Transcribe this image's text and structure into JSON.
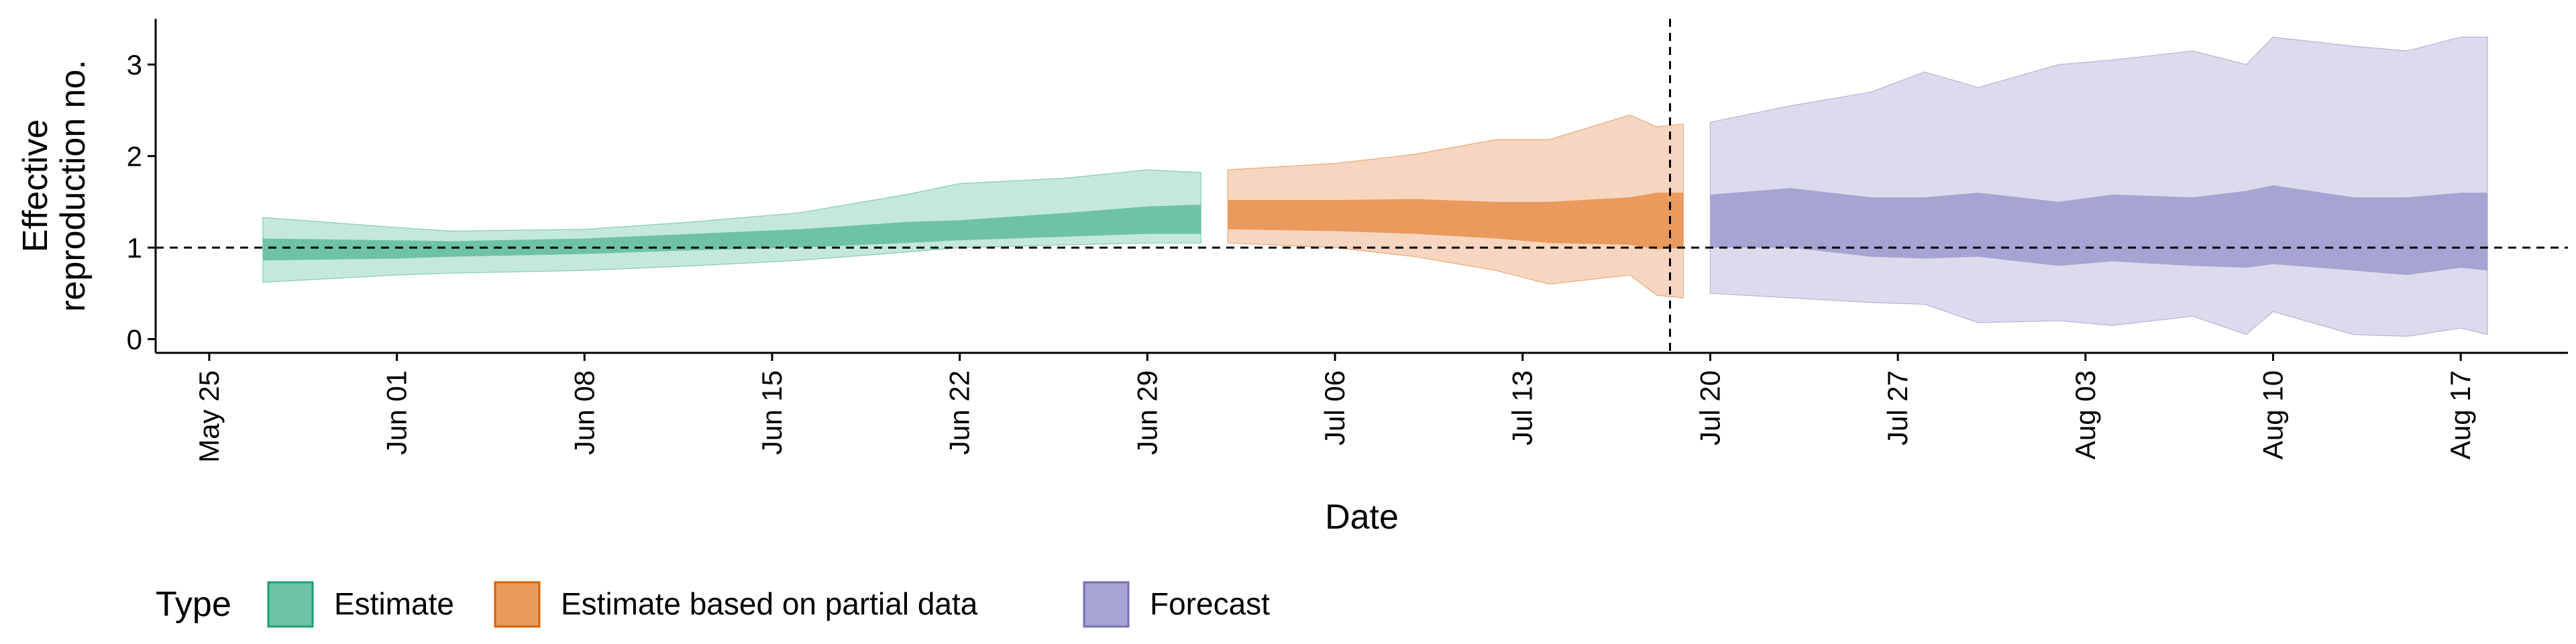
{
  "chart_data": {
    "type": "area",
    "xlabel": "Date",
    "ylabel": [
      "Effective",
      "reproduction no."
    ],
    "x_ticks": [
      "May 25",
      "Jun 01",
      "Jun 08",
      "Jun 15",
      "Jun 22",
      "Jun 29",
      "Jul 06",
      "Jul 13",
      "Jul 20",
      "Jul 27",
      "Aug 03",
      "Aug 10",
      "Aug 17"
    ],
    "y_ticks": [
      0,
      1,
      2,
      3
    ],
    "xlim": [
      "2020-05-23",
      "2020-08-21"
    ],
    "ylim": [
      -0.15,
      3.5
    ],
    "reference_line_y": 1,
    "forecast_start": "2020-07-19",
    "legend_position": "bottom-left",
    "legend_title": "Type",
    "series": [
      {
        "name": "Estimate",
        "color": "#1b9e77",
        "fill_outer": "#c5e8dc",
        "fill_inner": "#6fc2a8",
        "points": [
          {
            "date": "2020-05-27",
            "lo90": 0.62,
            "lo50": 0.86,
            "hi50": 1.1,
            "hi90": 1.33
          },
          {
            "date": "2020-06-01",
            "lo90": 0.7,
            "lo50": 0.88,
            "hi50": 1.08,
            "hi90": 1.22
          },
          {
            "date": "2020-06-03",
            "lo90": 0.72,
            "lo50": 0.9,
            "hi50": 1.07,
            "hi90": 1.18
          },
          {
            "date": "2020-06-08",
            "lo90": 0.75,
            "lo50": 0.93,
            "hi50": 1.1,
            "hi90": 1.2
          },
          {
            "date": "2020-06-12",
            "lo90": 0.8,
            "lo50": 0.97,
            "hi50": 1.15,
            "hi90": 1.28
          },
          {
            "date": "2020-06-16",
            "lo90": 0.86,
            "lo50": 1.0,
            "hi50": 1.2,
            "hi90": 1.38
          },
          {
            "date": "2020-06-20",
            "lo90": 0.95,
            "lo50": 1.05,
            "hi50": 1.28,
            "hi90": 1.58
          },
          {
            "date": "2020-06-22",
            "lo90": 1.0,
            "lo50": 1.08,
            "hi50": 1.3,
            "hi90": 1.7
          },
          {
            "date": "2020-06-26",
            "lo90": 1.03,
            "lo50": 1.12,
            "hi50": 1.38,
            "hi90": 1.76
          },
          {
            "date": "2020-06-29",
            "lo90": 1.05,
            "lo50": 1.15,
            "hi50": 1.45,
            "hi90": 1.85
          },
          {
            "date": "2020-07-01",
            "lo90": 1.05,
            "lo50": 1.15,
            "hi50": 1.47,
            "hi90": 1.82
          }
        ]
      },
      {
        "name": "Estimate based on partial data",
        "color": "#d95f02",
        "fill_outer": "#f6d6c0",
        "fill_inner": "#e99a5c",
        "points": [
          {
            "date": "2020-07-02",
            "lo90": 1.05,
            "lo50": 1.2,
            "hi50": 1.52,
            "hi90": 1.85
          },
          {
            "date": "2020-07-06",
            "lo90": 1.0,
            "lo50": 1.18,
            "hi50": 1.52,
            "hi90": 1.92
          },
          {
            "date": "2020-07-09",
            "lo90": 0.9,
            "lo50": 1.15,
            "hi50": 1.53,
            "hi90": 2.02
          },
          {
            "date": "2020-07-12",
            "lo90": 0.75,
            "lo50": 1.1,
            "hi50": 1.5,
            "hi90": 2.18
          },
          {
            "date": "2020-07-14",
            "lo90": 0.6,
            "lo50": 1.05,
            "hi50": 1.5,
            "hi90": 2.18
          },
          {
            "date": "2020-07-17",
            "lo90": 0.7,
            "lo50": 1.03,
            "hi50": 1.55,
            "hi90": 2.45
          },
          {
            "date": "2020-07-18",
            "lo90": 0.48,
            "lo50": 0.98,
            "hi50": 1.6,
            "hi90": 2.32
          },
          {
            "date": "2020-07-19",
            "lo90": 0.45,
            "lo50": 1.0,
            "hi50": 1.6,
            "hi90": 2.35
          }
        ]
      },
      {
        "name": "Forecast",
        "color": "#7570b3",
        "fill_outer": "#dcdbed",
        "fill_inner": "#a7a3d2",
        "points": [
          {
            "date": "2020-07-20",
            "lo90": 0.5,
            "lo50": 1.0,
            "hi50": 1.58,
            "hi90": 2.37
          },
          {
            "date": "2020-07-23",
            "lo90": 0.45,
            "lo50": 1.0,
            "hi50": 1.65,
            "hi90": 2.55
          },
          {
            "date": "2020-07-26",
            "lo90": 0.4,
            "lo50": 0.9,
            "hi50": 1.55,
            "hi90": 2.7
          },
          {
            "date": "2020-07-28",
            "lo90": 0.38,
            "lo50": 0.88,
            "hi50": 1.55,
            "hi90": 2.92
          },
          {
            "date": "2020-07-30",
            "lo90": 0.18,
            "lo50": 0.9,
            "hi50": 1.6,
            "hi90": 2.75
          },
          {
            "date": "2020-08-02",
            "lo90": 0.2,
            "lo50": 0.8,
            "hi50": 1.5,
            "hi90": 3.0
          },
          {
            "date": "2020-08-04",
            "lo90": 0.15,
            "lo50": 0.85,
            "hi50": 1.58,
            "hi90": 3.05
          },
          {
            "date": "2020-08-07",
            "lo90": 0.25,
            "lo50": 0.8,
            "hi50": 1.55,
            "hi90": 3.15
          },
          {
            "date": "2020-08-09",
            "lo90": 0.05,
            "lo50": 0.78,
            "hi50": 1.62,
            "hi90": 3.0
          },
          {
            "date": "2020-08-10",
            "lo90": 0.3,
            "lo50": 0.82,
            "hi50": 1.68,
            "hi90": 3.3
          },
          {
            "date": "2020-08-13",
            "lo90": 0.05,
            "lo50": 0.75,
            "hi50": 1.55,
            "hi90": 3.2
          },
          {
            "date": "2020-08-15",
            "lo90": 0.03,
            "lo50": 0.7,
            "hi50": 1.55,
            "hi90": 3.15
          },
          {
            "date": "2020-08-17",
            "lo90": 0.12,
            "lo50": 0.78,
            "hi50": 1.6,
            "hi90": 3.3
          },
          {
            "date": "2020-08-18",
            "lo90": 0.05,
            "lo50": 0.75,
            "hi50": 1.6,
            "hi90": 3.3
          }
        ]
      }
    ]
  }
}
